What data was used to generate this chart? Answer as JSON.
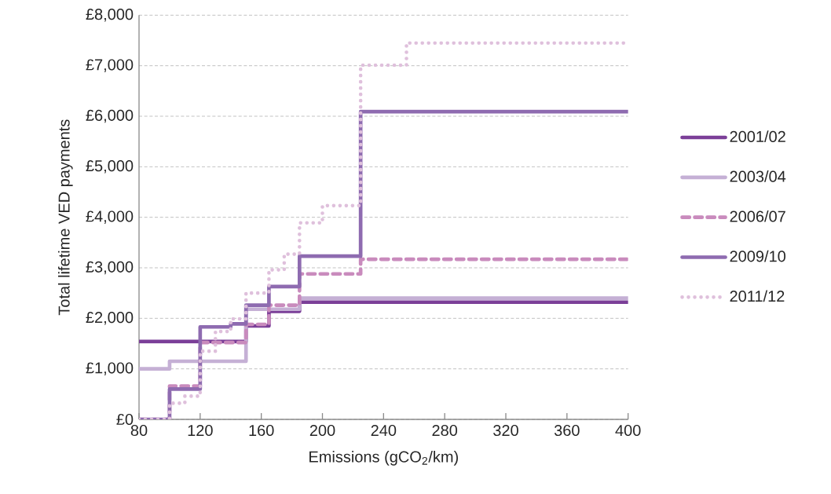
{
  "chart_data": {
    "type": "step",
    "xlabel": "Emissions (gCO$_{2}$/km)",
    "ylabel": "Total lifetime VED payments",
    "xlim": [
      80,
      400
    ],
    "ylim": [
      0,
      8000
    ],
    "xticks": [
      80,
      120,
      160,
      200,
      240,
      280,
      320,
      360,
      400
    ],
    "yticks": [
      {
        "value": 0,
        "label": "£0"
      },
      {
        "value": 1000,
        "label": "£1,000"
      },
      {
        "value": 2000,
        "label": "£2,000"
      },
      {
        "value": 3000,
        "label": "£3,000"
      },
      {
        "value": 4000,
        "label": "£4,000"
      },
      {
        "value": 5000,
        "label": "£5,000"
      },
      {
        "value": 6000,
        "label": "£6,000"
      },
      {
        "value": 7000,
        "label": "£7,000"
      },
      {
        "value": 8000,
        "label": "£8,000"
      }
    ],
    "grid": "y",
    "legend": "right",
    "marker": "none",
    "series": [
      {
        "name": "2001/02",
        "color": "#7b3f98",
        "line_style": "solid",
        "x": [
          80,
          150,
          165,
          185,
          400
        ],
        "values": [
          1540,
          1850,
          2140,
          2320,
          2320
        ]
      },
      {
        "name": "2003/04",
        "color": "#c5b0d5",
        "line_style": "solid",
        "x": [
          80,
          100,
          150,
          185,
          400
        ],
        "values": [
          1000,
          1150,
          2180,
          2400,
          2400
        ]
      },
      {
        "name": "2006/07",
        "color": "#c98bbd",
        "line_style": "dashed",
        "x": [
          80,
          100,
          120,
          150,
          165,
          185,
          225,
          400
        ],
        "values": [
          0,
          660,
          1520,
          1880,
          2260,
          2880,
          3170,
          3170
        ]
      },
      {
        "name": "2009/10",
        "color": "#8e6bb0",
        "line_style": "solid",
        "x": [
          80,
          100,
          120,
          140,
          150,
          165,
          185,
          225,
          400
        ],
        "values": [
          0,
          600,
          1830,
          1890,
          2260,
          2630,
          3230,
          6090,
          6090
        ]
      },
      {
        "name": "2011/12",
        "color": "#dfc0dc",
        "line_style": "dotted",
        "x": [
          80,
          100,
          110,
          120,
          130,
          140,
          150,
          165,
          175,
          185,
          200,
          225,
          255,
          400
        ],
        "values": [
          0,
          320,
          460,
          1350,
          1740,
          1990,
          2500,
          2960,
          3270,
          3890,
          4230,
          7010,
          7450,
          7450
        ]
      }
    ]
  }
}
